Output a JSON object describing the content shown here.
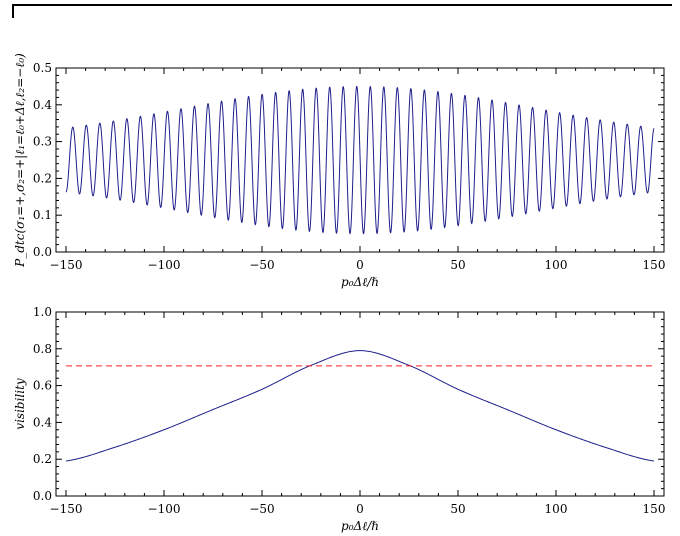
{
  "chart_data": [
    {
      "type": "line",
      "title": "",
      "xlabel": "p₀Δℓ/ℏ",
      "ylabel": "P_dtc(σ₁=+,σ₂=+|ℓ₁=ℓ₀+Δℓ,ℓ₂=−ℓ₀)",
      "xlim": [
        -150,
        150
      ],
      "ylim": [
        0.0,
        0.5
      ],
      "xticks": [
        -150,
        -100,
        -50,
        0,
        50,
        100,
        150
      ],
      "xtick_labels": [
        "−150",
        "−100",
        "−50",
        "0",
        "50",
        "100",
        "150"
      ],
      "yticks": [
        0.0,
        0.1,
        0.2,
        0.3,
        0.4,
        0.5
      ],
      "ytick_labels": [
        "0.0",
        "0.1",
        "0.2",
        "0.3",
        "0.4",
        "0.5"
      ],
      "grid": false,
      "series": [
        {
          "color": "#1f1f8c",
          "description_of_shape": "fast oscillation (period ~6.9 in x) centered at 0.25; amplitude 0.20 at x=0 decreasing to ~0.05 at x=±150",
          "center": 0.25,
          "amplitude_at_0": 0.2,
          "amplitude_at_edges": 0.05,
          "period": 6.9,
          "x_start": -150,
          "x_end": 150,
          "y_at_start": 0.2,
          "y_at_end": 0.245
        }
      ]
    },
    {
      "type": "line",
      "title": "",
      "xlabel": "p₀Δℓ/ℏ",
      "ylabel": "visibility",
      "xlim": [
        -150,
        150
      ],
      "ylim": [
        0.0,
        1.0
      ],
      "xticks": [
        -150,
        -100,
        -50,
        0,
        50,
        100,
        150
      ],
      "xtick_labels": [
        "−150",
        "−100",
        "−50",
        "0",
        "50",
        "100",
        "150"
      ],
      "yticks": [
        0.0,
        0.2,
        0.4,
        0.6,
        0.8,
        1.0
      ],
      "ytick_labels": [
        "0.0",
        "0.2",
        "0.4",
        "0.6",
        "0.8",
        "1.0"
      ],
      "grid": false,
      "series": [
        {
          "color": "#1f1f8c",
          "style": "solid",
          "x": [
            -150,
            -125,
            -100,
            -75,
            -50,
            -25,
            0,
            25,
            50,
            75,
            100,
            125,
            150
          ],
          "y": [
            0.19,
            0.265,
            0.36,
            0.47,
            0.58,
            0.71,
            0.79,
            0.71,
            0.58,
            0.47,
            0.36,
            0.265,
            0.19
          ]
        },
        {
          "color": "#ff2020",
          "style": "dashed",
          "x": [
            -150,
            150
          ],
          "y": [
            0.707,
            0.707
          ]
        }
      ]
    }
  ]
}
